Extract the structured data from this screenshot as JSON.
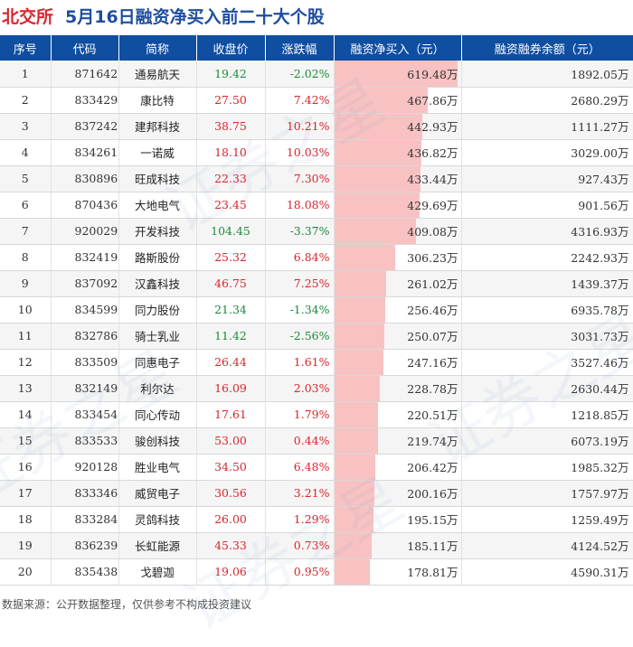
{
  "title": {
    "brand": "北交所",
    "main": "5月16日融资净买入前二十大个股"
  },
  "columns": [
    "序号",
    "代码",
    "简称",
    "收盘价",
    "涨跌幅",
    "融资净买入（元）",
    "融资融券余额（元）"
  ],
  "rows": [
    {
      "rank": "1",
      "code": "871642",
      "name": "通易航天",
      "close": "19.42",
      "change": "-2.02%",
      "dir": "down",
      "net": "619.48万",
      "net_value": 619.48,
      "balance": "1892.05万"
    },
    {
      "rank": "2",
      "code": "833429",
      "name": "康比特",
      "close": "27.50",
      "change": "7.42%",
      "dir": "up",
      "net": "467.86万",
      "net_value": 467.86,
      "balance": "2680.29万"
    },
    {
      "rank": "3",
      "code": "837242",
      "name": "建邦科技",
      "close": "38.75",
      "change": "10.21%",
      "dir": "up",
      "net": "442.93万",
      "net_value": 442.93,
      "balance": "1111.27万"
    },
    {
      "rank": "4",
      "code": "834261",
      "name": "一诺威",
      "close": "18.10",
      "change": "10.03%",
      "dir": "up",
      "net": "436.82万",
      "net_value": 436.82,
      "balance": "3029.00万"
    },
    {
      "rank": "5",
      "code": "830896",
      "name": "旺成科技",
      "close": "22.33",
      "change": "7.30%",
      "dir": "up",
      "net": "433.44万",
      "net_value": 433.44,
      "balance": "927.43万"
    },
    {
      "rank": "6",
      "code": "870436",
      "name": "大地电气",
      "close": "23.45",
      "change": "18.08%",
      "dir": "up",
      "net": "429.69万",
      "net_value": 429.69,
      "balance": "901.56万"
    },
    {
      "rank": "7",
      "code": "920029",
      "name": "开发科技",
      "close": "104.45",
      "change": "-3.37%",
      "dir": "down",
      "net": "409.08万",
      "net_value": 409.08,
      "balance": "4316.93万"
    },
    {
      "rank": "8",
      "code": "832419",
      "name": "路斯股份",
      "close": "25.32",
      "change": "6.84%",
      "dir": "up",
      "net": "306.23万",
      "net_value": 306.23,
      "balance": "2242.93万"
    },
    {
      "rank": "9",
      "code": "837092",
      "name": "汉鑫科技",
      "close": "46.75",
      "change": "7.25%",
      "dir": "up",
      "net": "261.02万",
      "net_value": 261.02,
      "balance": "1439.37万"
    },
    {
      "rank": "10",
      "code": "834599",
      "name": "同力股份",
      "close": "21.34",
      "change": "-1.34%",
      "dir": "down",
      "net": "256.46万",
      "net_value": 256.46,
      "balance": "6935.78万"
    },
    {
      "rank": "11",
      "code": "832786",
      "name": "骑士乳业",
      "close": "11.42",
      "change": "-2.56%",
      "dir": "down",
      "net": "250.07万",
      "net_value": 250.07,
      "balance": "3031.73万"
    },
    {
      "rank": "12",
      "code": "833509",
      "name": "同惠电子",
      "close": "26.44",
      "change": "1.61%",
      "dir": "up",
      "net": "247.16万",
      "net_value": 247.16,
      "balance": "3527.46万"
    },
    {
      "rank": "13",
      "code": "832149",
      "name": "利尔达",
      "close": "16.09",
      "change": "2.03%",
      "dir": "up",
      "net": "228.78万",
      "net_value": 228.78,
      "balance": "2630.44万"
    },
    {
      "rank": "14",
      "code": "833454",
      "name": "同心传动",
      "close": "17.61",
      "change": "1.79%",
      "dir": "up",
      "net": "220.51万",
      "net_value": 220.51,
      "balance": "1218.85万"
    },
    {
      "rank": "15",
      "code": "833533",
      "name": "骏创科技",
      "close": "53.00",
      "change": "0.44%",
      "dir": "up",
      "net": "219.74万",
      "net_value": 219.74,
      "balance": "6073.19万"
    },
    {
      "rank": "16",
      "code": "920128",
      "name": "胜业电气",
      "close": "34.50",
      "change": "6.48%",
      "dir": "up",
      "net": "206.42万",
      "net_value": 206.42,
      "balance": "1985.32万"
    },
    {
      "rank": "17",
      "code": "833346",
      "name": "威贸电子",
      "close": "30.56",
      "change": "3.21%",
      "dir": "up",
      "net": "200.16万",
      "net_value": 200.16,
      "balance": "1757.97万"
    },
    {
      "rank": "18",
      "code": "833284",
      "name": "灵鸽科技",
      "close": "26.00",
      "change": "1.29%",
      "dir": "up",
      "net": "195.15万",
      "net_value": 195.15,
      "balance": "1259.49万"
    },
    {
      "rank": "19",
      "code": "836239",
      "name": "长虹能源",
      "close": "45.33",
      "change": "0.73%",
      "dir": "up",
      "net": "185.11万",
      "net_value": 185.11,
      "balance": "4124.52万"
    },
    {
      "rank": "20",
      "code": "835438",
      "name": "戈碧迦",
      "close": "19.06",
      "change": "0.95%",
      "dir": "up",
      "net": "178.81万",
      "net_value": 178.81,
      "balance": "4590.31万"
    }
  ],
  "footer": "数据来源：公开数据整理，仅供参考不构成投资建议",
  "watermark": "证券之星",
  "colors": {
    "header_bg": "#0f4ea1",
    "up": "#d9262c",
    "down": "#1c8a3b",
    "bar": "#f8c2c2",
    "brand": "#d9262c",
    "title": "#1f4e9e"
  }
}
